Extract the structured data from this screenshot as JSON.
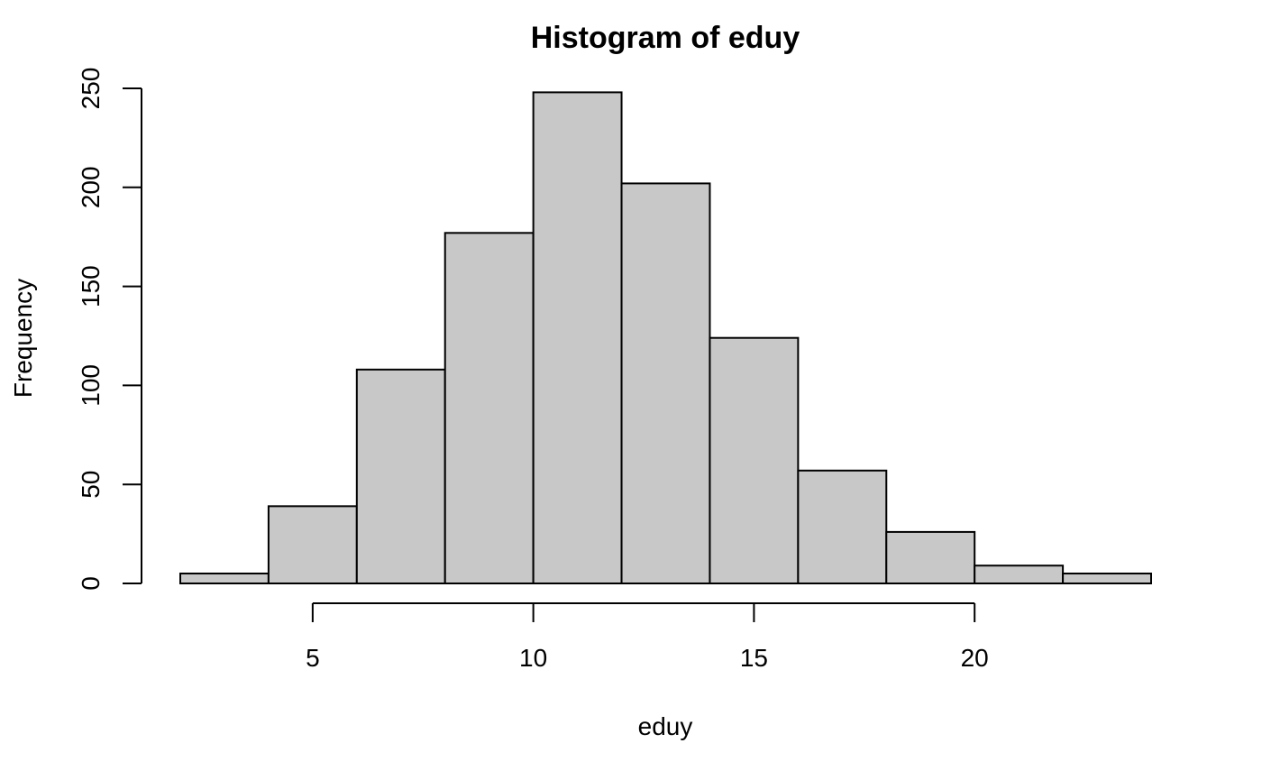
{
  "chart_data": {
    "type": "bar",
    "title": "Histogram of eduy",
    "xlabel": "eduy",
    "ylabel": "Frequency",
    "bins": [
      {
        "start": 2,
        "end": 4,
        "count": 5
      },
      {
        "start": 4,
        "end": 6,
        "count": 39
      },
      {
        "start": 6,
        "end": 8,
        "count": 108
      },
      {
        "start": 8,
        "end": 10,
        "count": 177
      },
      {
        "start": 10,
        "end": 12,
        "count": 248
      },
      {
        "start": 12,
        "end": 14,
        "count": 202
      },
      {
        "start": 14,
        "end": 16,
        "count": 124
      },
      {
        "start": 16,
        "end": 18,
        "count": 57
      },
      {
        "start": 18,
        "end": 20,
        "count": 26
      },
      {
        "start": 20,
        "end": 22,
        "count": 9
      },
      {
        "start": 22,
        "end": 24,
        "count": 5
      }
    ],
    "xticks": [
      5,
      10,
      15,
      20
    ],
    "yticks": [
      0,
      50,
      100,
      150,
      200,
      250
    ],
    "xlim": [
      2,
      24
    ],
    "ylim": [
      0,
      250
    ],
    "grid": false,
    "bar_color": "#c8c8c8",
    "edge_color": "#000000"
  }
}
